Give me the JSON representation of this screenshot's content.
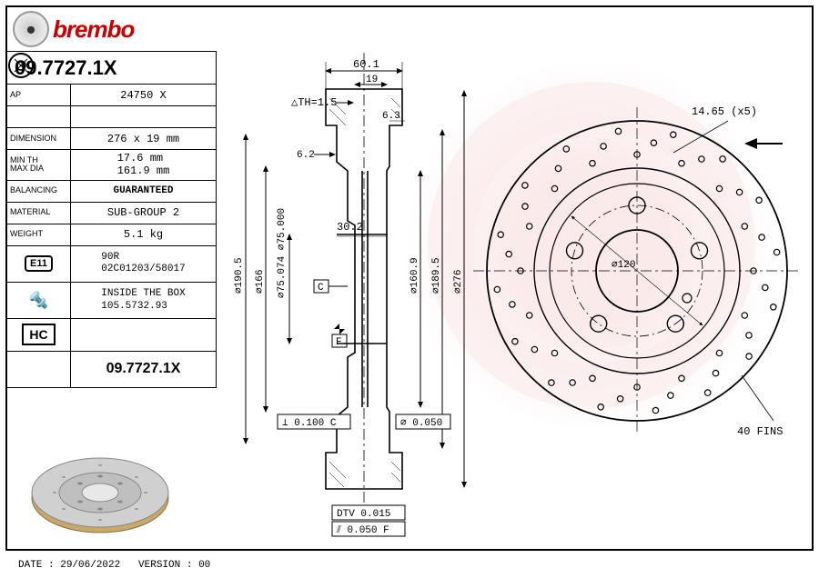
{
  "brand": "brembo",
  "part_number": "09.7727.1X",
  "specs": {
    "ap_label": "AP",
    "ap_value": "24750 X",
    "dimension_label": "DIMENSION",
    "dimension_value": "276 x 19 mm",
    "minth_label": "MIN TH\nMAX DIA",
    "minth_value": "17.6 mm\n161.9 mm",
    "balancing_label": "BALANCING",
    "balancing_value": "GUARANTEED",
    "material_label": "MATERIAL",
    "material_value": "SUB-GROUP 2",
    "weight_label": "WEIGHT",
    "weight_value": "5.1 kg",
    "e11_label": "E11",
    "e11_value": "90R\n02C01203/58017",
    "box_value": "INSIDE THE BOX\n105.5732.93",
    "hc_label": "HC",
    "repeat_part": "09.7727.1X"
  },
  "dimensions": {
    "top_width": "60.1",
    "inner_19": "19",
    "th": "△TH=1.5",
    "d63": "6.3",
    "d62": "6.2",
    "d302": "30.2",
    "d166": "⌀166",
    "d75074": "⌀75.074\n⌀75.000",
    "d1905": "⌀190.5",
    "d1609": "⌀160.9",
    "d1895": "⌀189.5",
    "d276": "⌀276",
    "d120": "⌀120",
    "bolt": "14.65 (x5)",
    "fins": "40 FINS",
    "tol_c": "⊥ 0.100 C",
    "tol_050": "⌀ 0.050",
    "dtv": "DTV 0.015",
    "tol_f": "⫽ 0.050 F",
    "c_label": "C",
    "f_label": "F"
  },
  "footer": {
    "date_label": "DATE :",
    "date_value": "29/06/2022",
    "version_label": "VERSION :",
    "version_value": "00"
  },
  "colors": {
    "brand_red": "#c00",
    "line": "#000",
    "disc_gold": "#c9a86a",
    "disc_grey": "#b8b8b8"
  }
}
